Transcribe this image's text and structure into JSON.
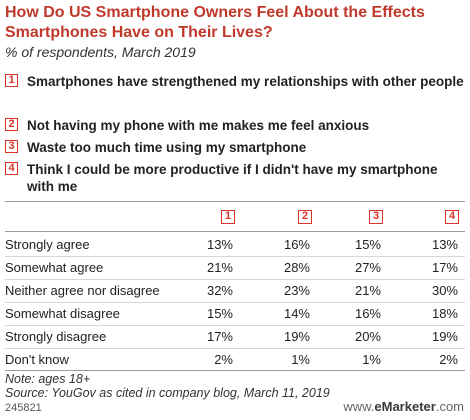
{
  "title": "How Do US Smartphone Owners Feel About the Effects Smartphones Have on Their Lives?",
  "subtitle": "% of respondents, March 2019",
  "statements": [
    {
      "num": "1",
      "text": "Smartphones have strengthened my relationships with other people"
    },
    {
      "num": "2",
      "text": "Not having my phone with me makes me feel anxious"
    },
    {
      "num": "3",
      "text": "Waste too much time using my smartphone"
    },
    {
      "num": "4",
      "text": "Think I could be more productive if I didn't have my smartphone with me"
    }
  ],
  "chart_data": {
    "type": "table",
    "columns": [
      "1",
      "2",
      "3",
      "4"
    ],
    "rows": [
      {
        "label": "Strongly agree",
        "values": [
          "13%",
          "16%",
          "15%",
          "13%"
        ]
      },
      {
        "label": "Somewhat agree",
        "values": [
          "21%",
          "28%",
          "27%",
          "17%"
        ]
      },
      {
        "label": "Neither agree nor disagree",
        "values": [
          "32%",
          "23%",
          "21%",
          "30%"
        ]
      },
      {
        "label": "Somewhat disagree",
        "values": [
          "15%",
          "14%",
          "16%",
          "18%"
        ]
      },
      {
        "label": "Strongly disagree",
        "values": [
          "17%",
          "19%",
          "20%",
          "19%"
        ]
      },
      {
        "label": "Don't know",
        "values": [
          "2%",
          "1%",
          "1%",
          "2%"
        ]
      }
    ]
  },
  "note": "Note: ages 18+",
  "source": "Source: YouGov as cited in company blog, March 11, 2019",
  "footer": {
    "id": "245821",
    "brand_prefix": "www.",
    "brand_name": "eMarketer",
    "brand_suffix": ".com"
  }
}
